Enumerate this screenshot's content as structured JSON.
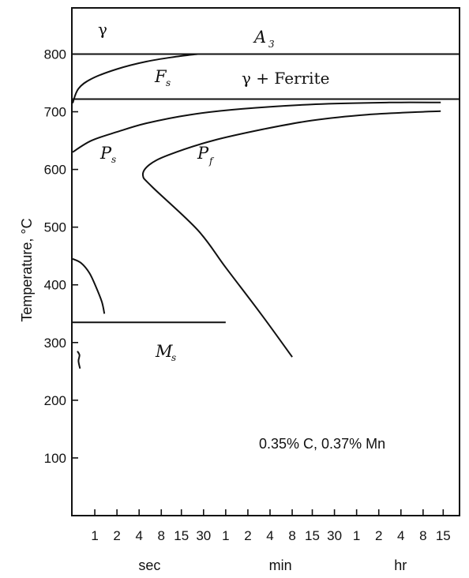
{
  "chart_data": {
    "type": "line",
    "title": "",
    "ylabel": "Temperature, °C",
    "xlabel": "",
    "ylim": [
      0,
      880
    ],
    "y_ticks": [
      100,
      200,
      300,
      400,
      500,
      600,
      700,
      800
    ],
    "x_scale": "log",
    "x_units": "seconds",
    "x_range_seconds": [
      0.5,
      90000
    ],
    "x_tick_groups": [
      {
        "unit": "sec",
        "ticks": [
          {
            "label": "1",
            "seconds": 1
          },
          {
            "label": "2",
            "seconds": 2
          },
          {
            "label": "4",
            "seconds": 4
          },
          {
            "label": "8",
            "seconds": 8
          },
          {
            "label": "15",
            "seconds": 15
          },
          {
            "label": "30",
            "seconds": 30
          }
        ]
      },
      {
        "unit": "min",
        "ticks": [
          {
            "label": "1",
            "seconds": 60
          },
          {
            "label": "2",
            "seconds": 120
          },
          {
            "label": "4",
            "seconds": 240
          },
          {
            "label": "8",
            "seconds": 480
          },
          {
            "label": "15",
            "seconds": 900
          },
          {
            "label": "30",
            "seconds": 1800
          }
        ]
      },
      {
        "unit": "hr",
        "ticks": [
          {
            "label": "1",
            "seconds": 3600
          },
          {
            "label": "2",
            "seconds": 7200
          },
          {
            "label": "4",
            "seconds": 14400
          },
          {
            "label": "8",
            "seconds": 28800
          },
          {
            "label": "15",
            "seconds": 54000
          }
        ]
      }
    ],
    "horizontal_lines": [
      {
        "name": "A3",
        "temperature": 800,
        "x_from_seconds": 0.5,
        "x_to_seconds": 90000
      },
      {
        "name": "ferrite-boundary",
        "temperature": 722,
        "x_from_seconds": 0.5,
        "x_to_seconds": 90000
      },
      {
        "name": "Ms",
        "temperature": 335,
        "x_from_seconds": 0.5,
        "x_to_seconds": 60
      }
    ],
    "series": [
      {
        "name": "Fs",
        "points": [
          [
            0.5,
            715
          ],
          [
            0.6,
            740
          ],
          [
            0.9,
            757
          ],
          [
            2,
            774
          ],
          [
            5,
            787
          ],
          [
            12,
            795
          ],
          [
            25,
            800
          ]
        ]
      },
      {
        "name": "Ps",
        "points": [
          [
            0.5,
            630
          ],
          [
            0.9,
            650
          ],
          [
            2,
            665
          ],
          [
            5,
            680
          ],
          [
            20,
            695
          ],
          [
            100,
            705
          ],
          [
            1000,
            713
          ],
          [
            10000,
            716
          ],
          [
            50000,
            716
          ]
        ]
      },
      {
        "name": "Pf",
        "points": [
          [
            480,
            275
          ],
          [
            180,
            350
          ],
          [
            60,
            430
          ],
          [
            25,
            495
          ],
          [
            6,
            570
          ],
          [
            4.5,
            590
          ],
          [
            5.5,
            608
          ],
          [
            10,
            625
          ],
          [
            40,
            650
          ],
          [
            200,
            670
          ],
          [
            900,
            685
          ],
          [
            5000,
            695
          ],
          [
            30000,
            700
          ],
          [
            50000,
            701
          ]
        ]
      },
      {
        "name": "bainite-start",
        "points": [
          [
            0.5,
            445
          ],
          [
            0.65,
            438
          ],
          [
            0.85,
            420
          ],
          [
            1.05,
            395
          ],
          [
            1.25,
            370
          ],
          [
            1.35,
            350
          ]
        ]
      },
      {
        "name": "lower-mark",
        "points": [
          [
            0.58,
            285
          ],
          [
            0.62,
            278
          ],
          [
            0.6,
            268
          ],
          [
            0.63,
            255
          ]
        ]
      }
    ],
    "labels": {
      "gamma": "γ",
      "a3_main": "A",
      "a3_sub": "3",
      "gamma_ferrite": "γ + Ferrite",
      "fs_main": "F",
      "fs_sub": "s",
      "ps_main": "P",
      "ps_sub": "s",
      "pf_main": "P",
      "pf_sub": "f",
      "ms_main": "M",
      "ms_sub": "s",
      "composition": "0.35% C, 0.37% Mn"
    }
  }
}
